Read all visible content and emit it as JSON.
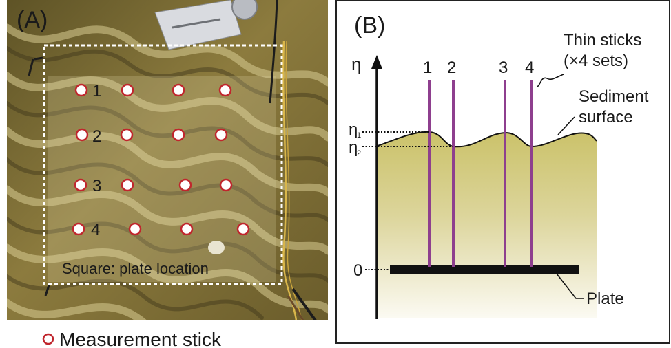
{
  "panel_a": {
    "label": "(A)",
    "square_caption": "Square: plate location",
    "row_numbers": [
      "1",
      "2",
      "3",
      "4"
    ],
    "legend_text": "Measurement stick",
    "marker_color": "#c0262d"
  },
  "panel_b": {
    "label": "(B)",
    "axis_symbol": "η",
    "zero_label": "0",
    "eta1_main": "η",
    "eta1_sub": "1",
    "eta2_main": "η",
    "eta2_sub": "2",
    "stick_numbers": [
      "1",
      "2",
      "3",
      "4"
    ],
    "thin_sticks_line1": "Thin sticks",
    "thin_sticks_line2": "(×4 sets)",
    "sediment_line1": "Sediment",
    "sediment_line2": "surface",
    "plate_label": "Plate",
    "stick_color": "#8e3f8e",
    "sediment_color": "#cdc46c"
  }
}
